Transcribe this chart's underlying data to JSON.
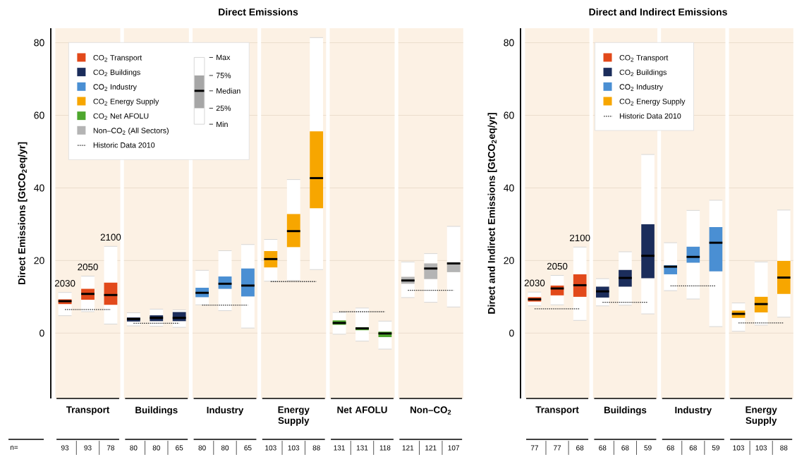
{
  "chart_data": [
    {
      "type": "box",
      "title": "Direct Emissions",
      "ylabel": "Direct Emissions [GtCO$_{2}$eq/yr]",
      "categories": [
        null,
        "Transport",
        null,
        null,
        "Buildings",
        null,
        null,
        "Industry",
        null,
        null,
        "Energy Supply",
        null,
        null,
        "Net AFOLU",
        null,
        null,
        "Non–CO$_{2}$",
        null
      ],
      "ylim": [
        -18,
        84
      ],
      "yticks": [
        0,
        20,
        40,
        60,
        80
      ],
      "grid": "y",
      "legend": "top left",
      "series": [
        {
          "name": "CO$_{2}$ Transport",
          "color": "#e2491a",
          "boxes": [
            {
              "low": 4.8,
              "q1": 8.0,
              "median": 8.8,
              "q3": 9.3,
              "high": 11.2
            },
            {
              "low": 5.9,
              "q1": 9.2,
              "median": 10.8,
              "q3": 12.2,
              "high": 15.7
            },
            {
              "low": 2.5,
              "q1": 7.8,
              "median": 10.5,
              "q3": 13.9,
              "high": 23.9
            },
            null,
            null,
            null,
            null,
            null,
            null,
            null,
            null,
            null,
            null,
            null,
            null,
            null,
            null,
            null
          ]
        },
        {
          "name": "CO$_{2}$ Buildings",
          "color": "#1b2d5b",
          "boxes": [
            null,
            null,
            null,
            {
              "low": 2.0,
              "q1": 3.2,
              "median": 3.9,
              "q3": 4.3,
              "high": 5.6
            },
            {
              "low": 1.9,
              "q1": 3.3,
              "median": 4.2,
              "q3": 4.9,
              "high": 6.6
            },
            {
              "low": 1.6,
              "q1": 3.3,
              "median": 4.2,
              "q3": 5.8,
              "high": 6.4
            },
            null,
            null,
            null,
            null,
            null,
            null,
            null,
            null,
            null,
            null,
            null,
            null
          ]
        },
        {
          "name": "CO$_{2}$ Industry",
          "color": "#4a8fd3",
          "boxes": [
            null,
            null,
            null,
            null,
            null,
            null,
            {
              "low": 7.8,
              "q1": 9.9,
              "median": 11.1,
              "q3": 12.5,
              "high": 17.3
            },
            {
              "low": 6.2,
              "q1": 12.2,
              "median": 13.6,
              "q3": 15.6,
              "high": 22.7
            },
            {
              "low": 1.4,
              "q1": 10.1,
              "median": 13.1,
              "q3": 17.8,
              "high": 24.4
            },
            null,
            null,
            null,
            null,
            null,
            null,
            null,
            null,
            null
          ]
        },
        {
          "name": "CO$_{2}$ Energy Supply",
          "color": "#f7a600",
          "boxes": [
            null,
            null,
            null,
            null,
            null,
            null,
            null,
            null,
            null,
            {
              "low": 14.3,
              "q1": 18.1,
              "median": 20.4,
              "q3": 22.6,
              "high": 25.8
            },
            {
              "low": 14.5,
              "q1": 23.7,
              "median": 28.1,
              "q3": 32.8,
              "high": 42.3
            },
            {
              "low": 17.5,
              "q1": 34.4,
              "median": 42.7,
              "q3": 55.6,
              "high": 81.4
            },
            null,
            null,
            null,
            null,
            null,
            null
          ]
        },
        {
          "name": "CO$_{2}$ Net AFOLU",
          "color": "#4ea72e",
          "boxes": [
            null,
            null,
            null,
            null,
            null,
            null,
            null,
            null,
            null,
            null,
            null,
            null,
            {
              "low": -0.3,
              "q1": 2.3,
              "median": 2.8,
              "q3": 3.5,
              "high": 5.7
            },
            {
              "low": -2.2,
              "q1": 0.8,
              "median": 1.3,
              "q3": 1.6,
              "high": 6.9
            },
            {
              "low": -4.4,
              "q1": -1.1,
              "median": -0.1,
              "q3": 0.4,
              "high": 3.3
            },
            null,
            null,
            null
          ]
        },
        {
          "name": "Non–CO$_{2}$ (All Sectors)",
          "color": "#b4b4b4",
          "boxes": [
            null,
            null,
            null,
            null,
            null,
            null,
            null,
            null,
            null,
            null,
            null,
            null,
            null,
            null,
            null,
            {
              "low": 9.8,
              "q1": 13.6,
              "median": 14.5,
              "q3": 15.5,
              "high": 19.6
            },
            {
              "low": 8.5,
              "q1": 14.9,
              "median": 17.8,
              "q3": 19.2,
              "high": 21.9
            },
            {
              "low": 7.2,
              "q1": 16.8,
              "median": 19.2,
              "q3": 19.4,
              "high": 29.4
            }
          ]
        },
        {
          "name": "Historic Data 2010",
          "type": "line",
          "line_style": "dotted",
          "color": "#333333",
          "values": [
            6.5,
            6.5,
            6.5,
            null,
            null,
            null,
            null,
            null,
            null,
            null,
            null,
            null,
            null,
            null,
            null,
            null,
            null,
            null
          ]
        },
        {
          "type": "line",
          "line_style": "dotted",
          "color": "#333333",
          "values": [
            null,
            null,
            null,
            2.7,
            2.7,
            2.7,
            null,
            null,
            null,
            null,
            null,
            null,
            null,
            null,
            null,
            null,
            null,
            null
          ]
        },
        {
          "type": "line",
          "line_style": "dotted",
          "color": "#333333",
          "values": [
            null,
            null,
            null,
            null,
            null,
            null,
            7.7,
            7.7,
            7.7,
            null,
            null,
            null,
            null,
            null,
            null,
            null,
            null,
            null
          ]
        },
        {
          "type": "line",
          "line_style": "dotted",
          "color": "#333333",
          "values": [
            null,
            null,
            null,
            null,
            null,
            null,
            null,
            null,
            null,
            14.2,
            14.2,
            14.2,
            null,
            null,
            null,
            null,
            null,
            null
          ]
        },
        {
          "type": "line",
          "line_style": "dotted",
          "color": "#333333",
          "values": [
            null,
            null,
            null,
            null,
            null,
            null,
            null,
            null,
            null,
            null,
            null,
            null,
            5.9,
            5.9,
            5.9,
            null,
            null,
            null
          ]
        },
        {
          "type": "line",
          "line_style": "dotted",
          "color": "#333333",
          "values": [
            null,
            null,
            null,
            null,
            null,
            null,
            null,
            null,
            null,
            null,
            null,
            null,
            null,
            null,
            null,
            11.8,
            11.8,
            11.8
          ]
        }
      ],
      "annotations": [
        "2030",
        "2050",
        "2100",
        "93",
        "93",
        "78",
        "80",
        "80",
        "65",
        "80",
        "80",
        "65",
        "103",
        "103",
        "88",
        "131",
        "131",
        "118",
        "121",
        "121",
        "107",
        "n=",
        "Max",
        "75%",
        "Median",
        "25%",
        "Min"
      ]
    },
    {
      "type": "box",
      "title": "Direct and Indirect Emissions",
      "ylabel": "Direct and Indirect Emissions [GtCO$_{2}$eq/yr]",
      "categories": [
        null,
        "Transport",
        null,
        null,
        "Buildings",
        null,
        null,
        "Industry",
        null,
        null,
        "Energy Supply",
        null
      ],
      "ylim": [
        -18,
        84
      ],
      "yticks": [
        0,
        20,
        40,
        60,
        80
      ],
      "grid": "y",
      "legend": "top",
      "series": [
        {
          "name": "CO$_{2}$ Transport",
          "color": "#e2491a",
          "boxes": [
            {
              "low": 7.5,
              "q1": 8.7,
              "median": 9.3,
              "q3": 9.9,
              "high": 11.3
            },
            {
              "low": 7.8,
              "q1": 10.4,
              "median": 12.3,
              "q3": 13.1,
              "high": 15.9
            },
            {
              "low": 3.5,
              "q1": 10.0,
              "median": 13.2,
              "q3": 16.2,
              "high": 23.7
            },
            null,
            null,
            null,
            null,
            null,
            null,
            null,
            null,
            null
          ]
        },
        {
          "name": "CO$_{2}$ Buildings",
          "color": "#1b2d5b",
          "boxes": [
            null,
            null,
            null,
            {
              "low": 7.5,
              "q1": 9.8,
              "median": 11.5,
              "q3": 12.8,
              "high": 15.0
            },
            {
              "low": 7.7,
              "q1": 12.8,
              "median": 15.2,
              "q3": 17.4,
              "high": 22.4
            },
            {
              "low": 5.3,
              "q1": 15.1,
              "median": 21.3,
              "q3": 30.0,
              "high": 49.2
            },
            null,
            null,
            null,
            null,
            null,
            null
          ]
        },
        {
          "name": "CO$_{2}$ Industry",
          "color": "#4a8fd3",
          "boxes": [
            null,
            null,
            null,
            null,
            null,
            null,
            {
              "low": 11.7,
              "q1": 16.2,
              "median": 18.3,
              "q3": 18.7,
              "high": 24.9
            },
            {
              "low": 9.4,
              "q1": 19.4,
              "median": 21.0,
              "q3": 23.8,
              "high": 33.8
            },
            {
              "low": 1.8,
              "q1": 17.0,
              "median": 24.9,
              "q3": 29.2,
              "high": 36.6
            },
            null,
            null,
            null
          ]
        },
        {
          "name": "CO$_{2}$ Energy Supply",
          "color": "#f7a600",
          "boxes": [
            null,
            null,
            null,
            null,
            null,
            null,
            null,
            null,
            null,
            {
              "low": 0.5,
              "q1": 4.2,
              "median": 5.3,
              "q3": 6.2,
              "high": 8.3
            },
            {
              "low": 2.2,
              "q1": 5.7,
              "median": 8.0,
              "q3": 10.0,
              "high": 19.6
            },
            {
              "low": 4.4,
              "q1": 10.8,
              "median": 15.3,
              "q3": 19.9,
              "high": 33.9
            }
          ]
        },
        {
          "name": "Historic Data 2010",
          "type": "line",
          "line_style": "dotted",
          "color": "#333333",
          "values": [
            6.7,
            6.7,
            6.7,
            null,
            null,
            null,
            null,
            null,
            null,
            null,
            null,
            null
          ]
        },
        {
          "type": "line",
          "line_style": "dotted",
          "color": "#333333",
          "values": [
            null,
            null,
            null,
            8.5,
            8.5,
            8.5,
            null,
            null,
            null,
            null,
            null,
            null
          ]
        },
        {
          "type": "line",
          "line_style": "dotted",
          "color": "#333333",
          "values": [
            null,
            null,
            null,
            null,
            null,
            null,
            13.0,
            13.0,
            13.0,
            null,
            null,
            null
          ]
        },
        {
          "type": "line",
          "line_style": "dotted",
          "color": "#333333",
          "values": [
            null,
            null,
            null,
            null,
            null,
            null,
            null,
            null,
            null,
            2.8,
            2.8,
            2.8
          ]
        }
      ],
      "annotations": [
        "2030",
        "2050",
        "2100",
        "77",
        "77",
        "68",
        "68",
        "68",
        "59",
        "68",
        "68",
        "59",
        "103",
        "103",
        "88"
      ]
    }
  ]
}
